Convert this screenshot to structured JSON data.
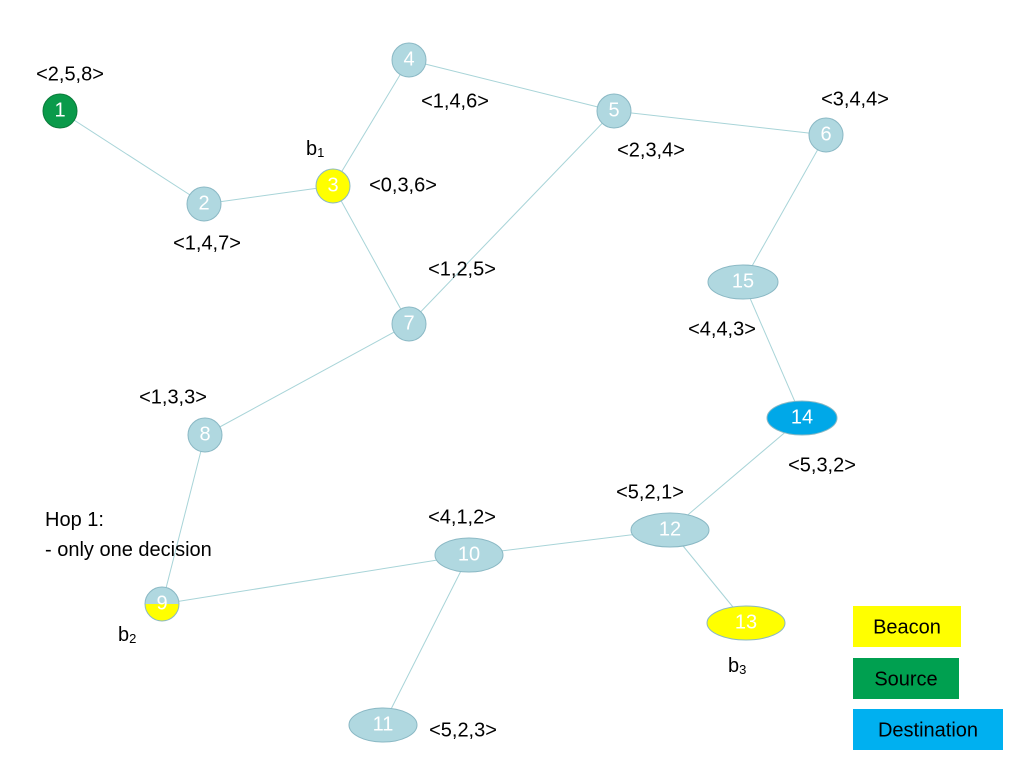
{
  "nodes": [
    {
      "label": "1",
      "tuple": "<2,5,8>"
    },
    {
      "label": "2",
      "tuple": "<1,4,7>"
    },
    {
      "label": "3",
      "tuple": "<0,3,6>"
    },
    {
      "label": "4",
      "tuple": "<1,4,6>"
    },
    {
      "label": "5",
      "tuple": "<2,3,4>"
    },
    {
      "label": "6",
      "tuple": "<3,4,4>"
    },
    {
      "label": "7",
      "tuple": "<1,2,5>"
    },
    {
      "label": "8",
      "tuple": "<1,3,3>"
    },
    {
      "label": "9"
    },
    {
      "label": "10",
      "tuple": "<4,1,2>"
    },
    {
      "label": "11",
      "tuple": "<5,2,3>"
    },
    {
      "label": "12",
      "tuple": "<5,2,1>"
    },
    {
      "label": "13"
    },
    {
      "label": "14",
      "tuple": "<5,3,2>"
    },
    {
      "label": "15",
      "tuple": "<4,4,3>"
    }
  ],
  "beacons": [
    {
      "base": "b",
      "sub": "1"
    },
    {
      "base": "b",
      "sub": "2"
    },
    {
      "base": "b",
      "sub": "3"
    }
  ],
  "note": [
    "Hop 1:",
    "- only one decision"
  ],
  "legend": [
    "Beacon",
    "Source",
    "Destination"
  ]
}
